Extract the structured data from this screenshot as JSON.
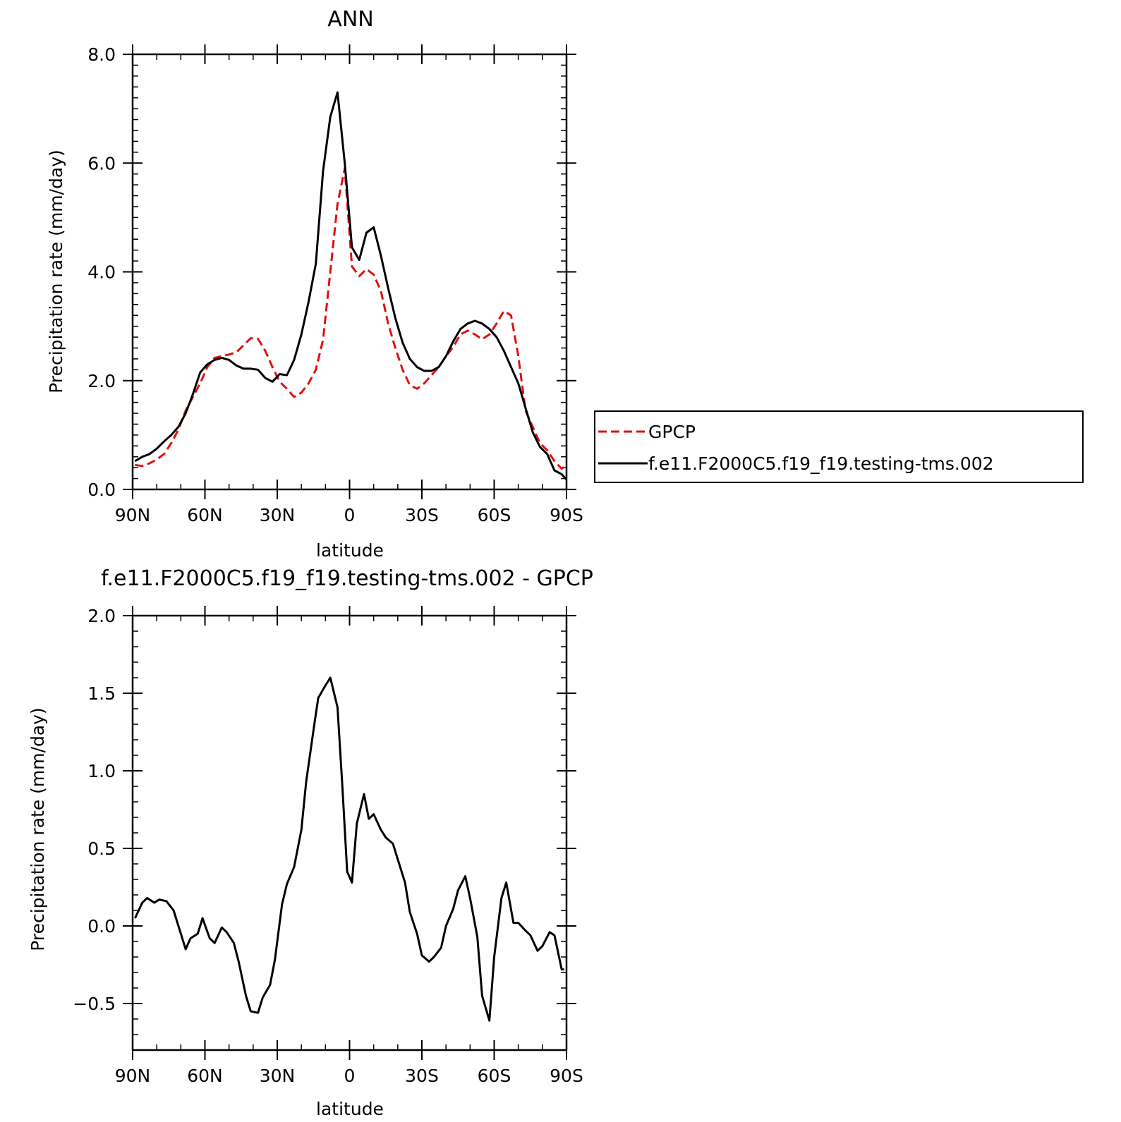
{
  "chart_data": [
    {
      "type": "line",
      "title": "ANN",
      "xlabel": "latitude",
      "ylabel": "Precipitation rate (mm/day)",
      "xlim": [
        90,
        -90
      ],
      "ylim": [
        0,
        8
      ],
      "xticks": [
        90,
        60,
        30,
        0,
        -30,
        -60,
        -90
      ],
      "xtick_labels": [
        "90N",
        "60N",
        "30N",
        "0",
        "30S",
        "60S",
        "90S"
      ],
      "yticks": [
        0,
        2,
        4,
        6,
        8
      ],
      "ytick_labels": [
        "0.0",
        "2.0",
        "4.0",
        "6.0",
        "8.0"
      ],
      "legend": {
        "placement": "right-middle",
        "entries": [
          "GPCP",
          "f.e11.F2000C5.f19_f19.testing-tms.002"
        ]
      },
      "series": [
        {
          "name": "GPCP",
          "color": "#e01010",
          "dash": "dashed",
          "x": [
            89,
            86,
            83,
            80,
            77,
            74,
            71,
            68,
            65,
            62,
            59,
            56,
            53,
            50,
            47,
            44,
            41,
            38,
            35,
            32,
            29,
            26,
            23,
            20,
            17,
            14,
            11,
            8,
            5,
            2,
            -1,
            -4,
            -7,
            -10,
            -13,
            -16,
            -19,
            -22,
            -25,
            -28,
            -31,
            -34,
            -37,
            -40,
            -43,
            -46,
            -49,
            -52,
            -55,
            -58,
            -61,
            -64,
            -67,
            -70,
            -73,
            -76,
            -79,
            -82,
            -85,
            -88,
            -90
          ],
          "y": [
            0.45,
            0.43,
            0.48,
            0.55,
            0.65,
            0.85,
            1.1,
            1.45,
            1.7,
            1.95,
            2.25,
            2.42,
            2.45,
            2.48,
            2.52,
            2.65,
            2.78,
            2.77,
            2.55,
            2.25,
            1.98,
            1.85,
            1.7,
            1.78,
            1.95,
            2.2,
            2.75,
            4.0,
            5.25,
            5.9,
            4.1,
            3.92,
            4.05,
            3.95,
            3.65,
            3.05,
            2.6,
            2.2,
            1.92,
            1.85,
            1.95,
            2.1,
            2.25,
            2.45,
            2.62,
            2.85,
            2.92,
            2.85,
            2.76,
            2.85,
            3.05,
            3.28,
            3.2,
            2.45,
            1.45,
            1.15,
            0.85,
            0.72,
            0.52,
            0.38,
            0.45
          ]
        },
        {
          "name": "f.e11.F2000C5.f19_f19.testing-tms.002",
          "color": "#000000",
          "dash": "solid",
          "x": [
            89,
            86,
            83,
            80,
            77,
            74,
            71,
            68,
            65,
            62,
            59,
            56,
            53,
            50,
            47,
            44,
            41,
            38,
            35,
            32,
            29,
            26,
            23,
            20,
            17,
            14,
            11,
            8,
            5,
            2,
            -1,
            -4,
            -7,
            -10,
            -13,
            -16,
            -19,
            -22,
            -25,
            -28,
            -31,
            -34,
            -37,
            -40,
            -43,
            -46,
            -49,
            -52,
            -55,
            -58,
            -61,
            -64,
            -67,
            -70,
            -73,
            -76,
            -79,
            -82,
            -85,
            -88,
            -90
          ],
          "y": [
            0.52,
            0.6,
            0.65,
            0.75,
            0.88,
            1.0,
            1.15,
            1.4,
            1.75,
            2.15,
            2.3,
            2.38,
            2.42,
            2.38,
            2.28,
            2.22,
            2.22,
            2.2,
            2.05,
            1.98,
            2.12,
            2.1,
            2.38,
            2.85,
            3.45,
            4.15,
            5.85,
            6.85,
            7.3,
            6.0,
            4.45,
            4.22,
            4.72,
            4.82,
            4.3,
            3.7,
            3.15,
            2.7,
            2.4,
            2.25,
            2.18,
            2.18,
            2.25,
            2.45,
            2.72,
            2.95,
            3.05,
            3.1,
            3.05,
            2.95,
            2.8,
            2.55,
            2.25,
            1.95,
            1.5,
            1.05,
            0.78,
            0.65,
            0.35,
            0.28,
            0.18
          ]
        }
      ]
    },
    {
      "type": "line",
      "title": "f.e11.F2000C5.f19_f19.testing-tms.002 - GPCP",
      "xlabel": "latitude",
      "ylabel": "Precipitation rate (mm/day)",
      "xlim": [
        90,
        -90
      ],
      "ylim": [
        -0.8,
        2.0
      ],
      "xticks": [
        90,
        60,
        30,
        0,
        -30,
        -60,
        -90
      ],
      "xtick_labels": [
        "90N",
        "60N",
        "30N",
        "0",
        "30S",
        "60S",
        "90S"
      ],
      "yticks": [
        -0.5,
        0,
        0.5,
        1.0,
        1.5,
        2.0
      ],
      "ytick_labels": [
        "−0.5",
        "0.0",
        "0.5",
        "1.0",
        "1.5",
        "2.0"
      ],
      "series": [
        {
          "name": "f.e11.F2000C5.f19_f19.testing-tms.002 - GPCP",
          "color": "#000000",
          "dash": "solid",
          "x": [
            89,
            86,
            84,
            81,
            79,
            76,
            73,
            71,
            68,
            66,
            63,
            61,
            58,
            56,
            53,
            51,
            48,
            46,
            43,
            41,
            38,
            36,
            33,
            31,
            28,
            26,
            23,
            20,
            18,
            15,
            13,
            10,
            8,
            5,
            3,
            1,
            -1,
            -3,
            -6,
            -8,
            -10,
            -13,
            -15,
            -18,
            -20,
            -23,
            -25,
            -28,
            -30,
            -33,
            -35,
            -38,
            -40,
            -43,
            -45,
            -48,
            -50,
            -53,
            -55,
            -58,
            -60,
            -63,
            -65,
            -68,
            -70,
            -73,
            -75,
            -78,
            -80,
            -83,
            -85,
            -88,
            -89
          ],
          "y": [
            0.05,
            0.15,
            0.18,
            0.15,
            0.17,
            0.16,
            0.1,
            0.0,
            -0.15,
            -0.08,
            -0.05,
            0.05,
            -0.08,
            -0.11,
            -0.01,
            -0.04,
            -0.11,
            -0.23,
            -0.45,
            -0.55,
            -0.56,
            -0.46,
            -0.38,
            -0.22,
            0.14,
            0.27,
            0.38,
            0.62,
            0.93,
            1.26,
            1.47,
            1.55,
            1.6,
            1.41,
            0.9,
            0.35,
            0.28,
            0.66,
            0.85,
            0.69,
            0.72,
            0.62,
            0.57,
            0.53,
            0.43,
            0.28,
            0.09,
            -0.05,
            -0.19,
            -0.23,
            -0.2,
            -0.14,
            0.0,
            0.11,
            0.23,
            0.32,
            0.18,
            -0.07,
            -0.45,
            -0.61,
            -0.2,
            0.18,
            0.28,
            0.02,
            0.02,
            -0.03,
            -0.06,
            -0.16,
            -0.13,
            -0.04,
            -0.06,
            -0.28,
            -0.28
          ]
        }
      ]
    }
  ]
}
